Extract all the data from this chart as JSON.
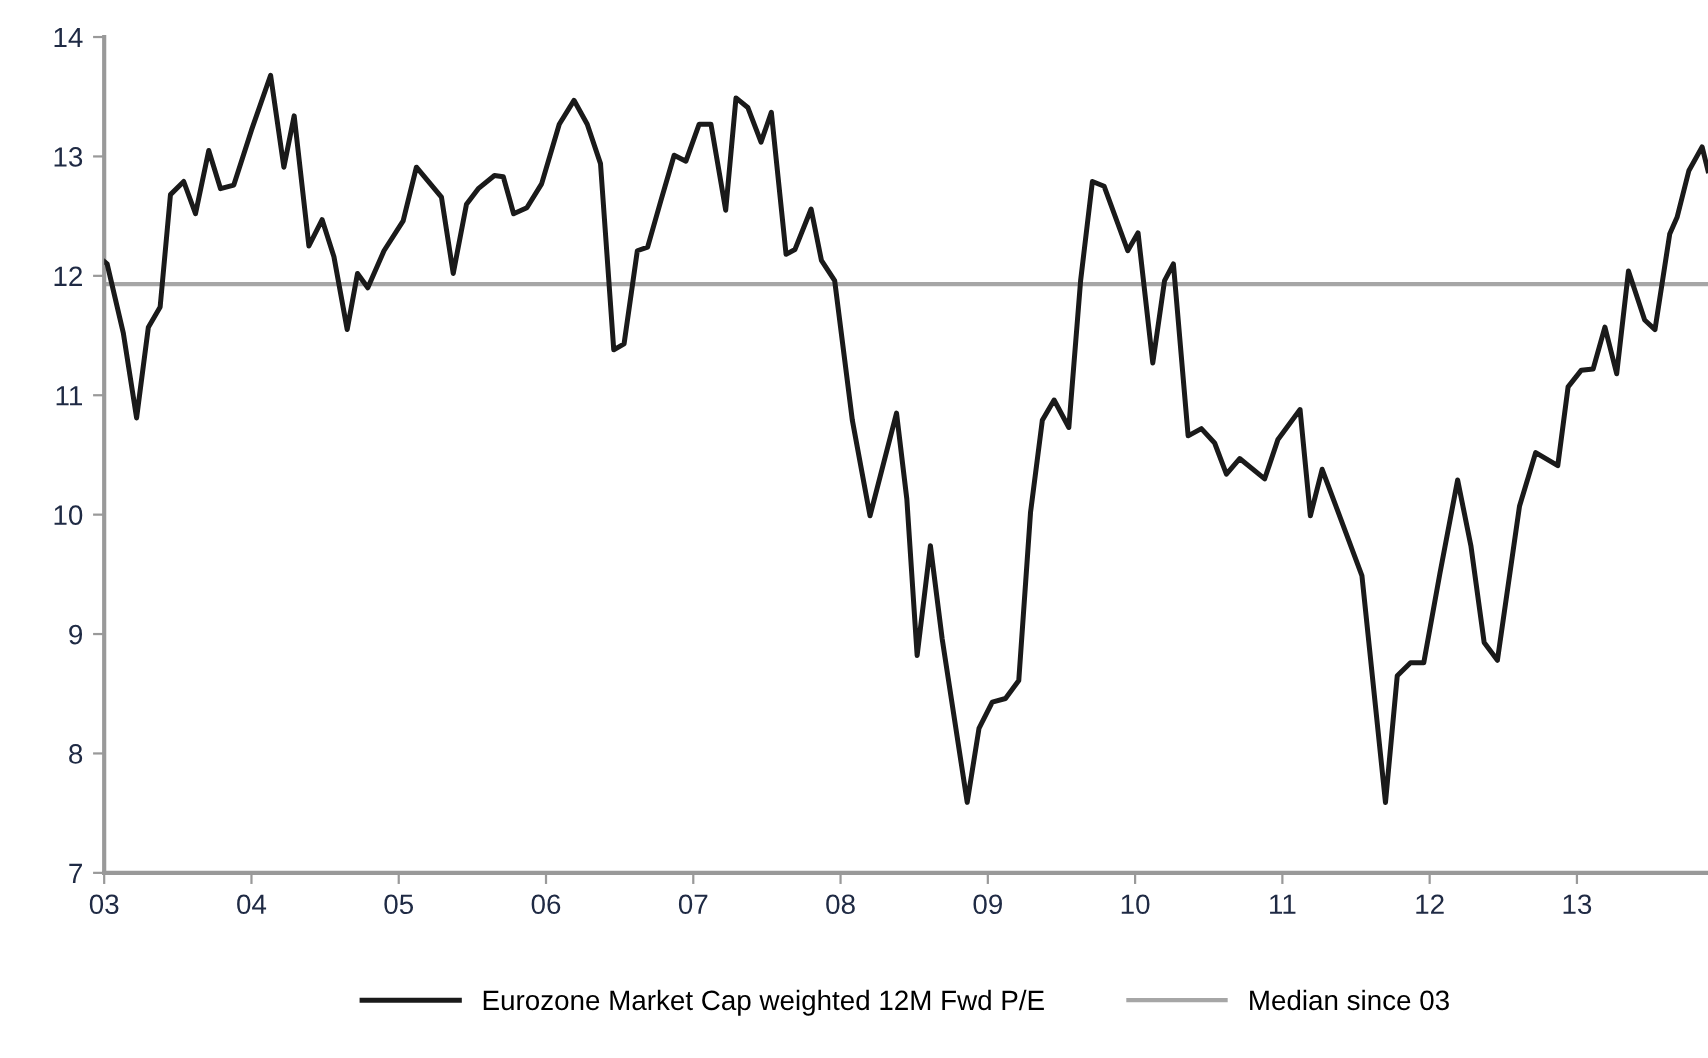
{
  "chart_data": {
    "type": "line",
    "xlim": [
      2003,
      2013.89
    ],
    "ylim": [
      7,
      14
    ],
    "xticks": [
      {
        "value": 2003,
        "label": "03"
      },
      {
        "value": 2004,
        "label": "04"
      },
      {
        "value": 2005,
        "label": "05"
      },
      {
        "value": 2006,
        "label": "06"
      },
      {
        "value": 2007,
        "label": "07"
      },
      {
        "value": 2008,
        "label": "08"
      },
      {
        "value": 2009,
        "label": "09"
      },
      {
        "value": 2010,
        "label": "10"
      },
      {
        "value": 2011,
        "label": "11"
      },
      {
        "value": 2012,
        "label": "12"
      },
      {
        "value": 2013,
        "label": "13"
      }
    ],
    "yticks": [
      7,
      8,
      9,
      10,
      11,
      12,
      13,
      14
    ],
    "grid": false,
    "legend": "bottom",
    "marker": "none",
    "line_style": "solid",
    "series": [
      {
        "name": "Eurozone Market Cap weighted 12M Fwd P/E",
        "color": "#1a1a1a",
        "x": [
          2003.0,
          2003.02,
          2003.13,
          2003.22,
          2003.3,
          2003.38,
          2003.45,
          2003.54,
          2003.62,
          2003.71,
          2003.79,
          2003.88,
          2004.0,
          2004.13,
          2004.22,
          2004.29,
          2004.39,
          2004.48,
          2004.56,
          2004.65,
          2004.72,
          2004.79,
          2004.9,
          2005.03,
          2005.12,
          2005.29,
          2005.37,
          2005.46,
          2005.54,
          2005.65,
          2005.71,
          2005.78,
          2005.87,
          2005.97,
          2006.09,
          2006.19,
          2006.28,
          2006.37,
          2006.46,
          2006.53,
          2006.62,
          2006.69,
          2006.78,
          2006.87,
          2006.95,
          2007.04,
          2007.12,
          2007.22,
          2007.29,
          2007.37,
          2007.46,
          2007.53,
          2007.63,
          2007.69,
          2007.8,
          2007.87,
          2007.96,
          2008.08,
          2008.2,
          2008.38,
          2008.45,
          2008.52,
          2008.61,
          2008.69,
          2008.86,
          2008.94,
          2009.03,
          2009.12,
          2009.21,
          2009.29,
          2009.37,
          2009.45,
          2009.55,
          2009.63,
          2009.71,
          2009.79,
          2009.95,
          2010.02,
          2010.12,
          2010.2,
          2010.26,
          2010.36,
          2010.45,
          2010.54,
          2010.62,
          2010.71,
          2010.88,
          2010.97,
          2011.12,
          2011.19,
          2011.27,
          2011.54,
          2011.7,
          2011.78,
          2011.87,
          2011.96,
          2012.07,
          2012.19,
          2012.28,
          2012.37,
          2012.46,
          2012.61,
          2012.72,
          2012.87,
          2012.94,
          2013.03,
          2013.11,
          2013.19,
          2013.27,
          2013.35,
          2013.46,
          2013.53,
          2013.63,
          2013.68,
          2013.76,
          2013.85,
          2013.89
        ],
        "values": [
          12.12,
          12.1,
          11.52,
          10.81,
          11.57,
          11.74,
          12.68,
          12.79,
          12.52,
          13.05,
          12.73,
          12.76,
          13.22,
          13.68,
          12.91,
          13.34,
          12.25,
          12.47,
          12.16,
          11.55,
          12.02,
          11.9,
          12.21,
          12.46,
          12.91,
          12.66,
          12.02,
          12.6,
          12.73,
          12.84,
          12.83,
          12.52,
          12.57,
          12.77,
          13.27,
          13.47,
          13.27,
          12.94,
          11.38,
          11.43,
          12.21,
          12.24,
          12.63,
          13.01,
          12.96,
          13.27,
          13.27,
          12.55,
          13.49,
          13.41,
          13.12,
          13.37,
          12.18,
          12.22,
          12.56,
          12.13,
          11.96,
          10.79,
          9.99,
          10.85,
          10.13,
          8.82,
          9.74,
          8.96,
          7.59,
          8.21,
          8.43,
          8.46,
          8.61,
          10.02,
          10.79,
          10.96,
          10.73,
          11.96,
          12.79,
          12.75,
          12.21,
          12.36,
          11.27,
          11.96,
          12.1,
          10.66,
          10.72,
          10.6,
          10.34,
          10.47,
          10.3,
          10.63,
          10.88,
          9.99,
          10.38,
          9.49,
          7.59,
          8.65,
          8.76,
          8.76,
          9.51,
          10.29,
          9.74,
          8.93,
          8.78,
          10.07,
          10.52,
          10.41,
          11.07,
          11.21,
          11.22,
          11.57,
          11.18,
          12.04,
          11.63,
          11.55,
          12.35,
          12.49,
          12.88,
          13.08,
          12.88
        ]
      },
      {
        "name": "Median since 03",
        "color": "#a6a6a6",
        "x": [
          2003,
          2013.89
        ],
        "values": [
          11.93,
          11.93
        ]
      }
    ]
  }
}
